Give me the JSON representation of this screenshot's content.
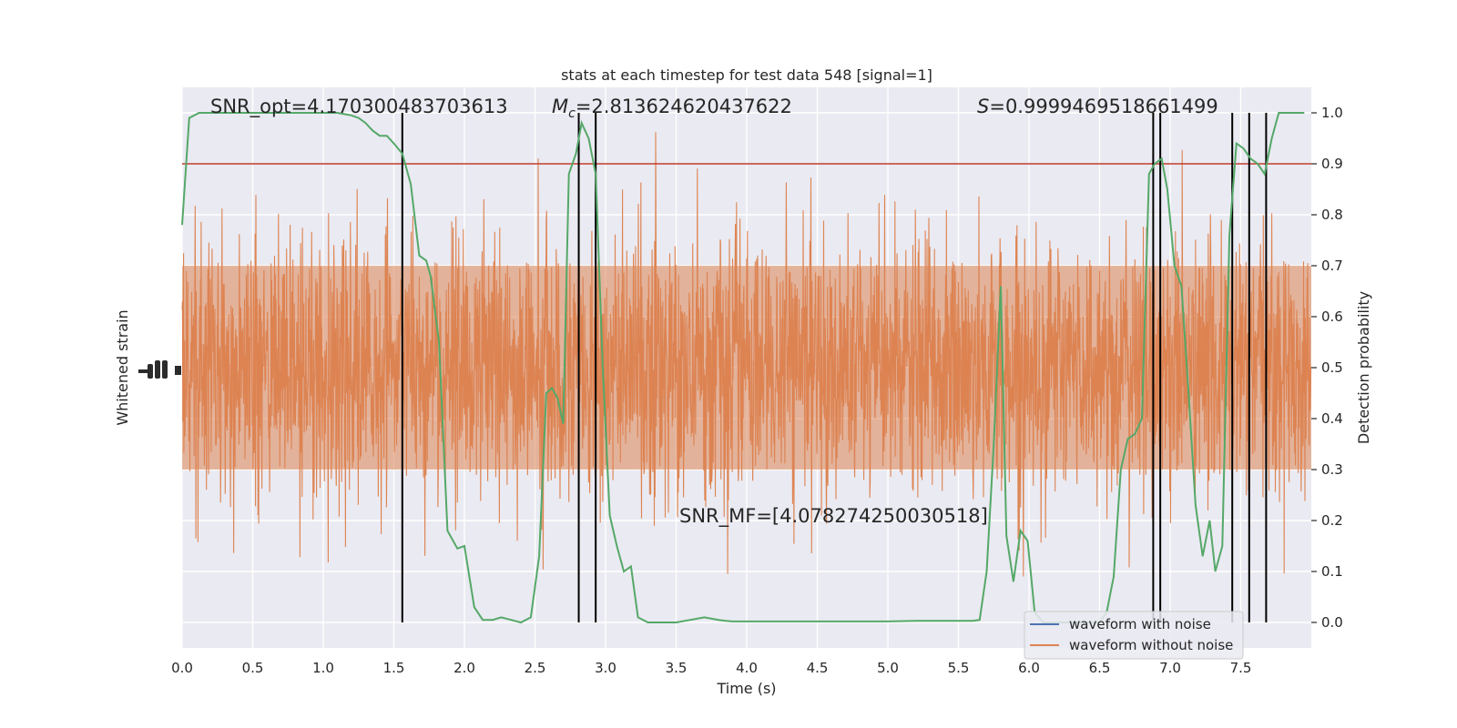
{
  "chart_data": {
    "type": "line",
    "title": "stats at each timestep for test data 548 [signal=1]",
    "xlabel": "Time (s)",
    "ylabel_left": "Whitened strain",
    "ylabel_right": "Detection probability",
    "xlim": [
      0,
      8
    ],
    "ylim_right": [
      -0.05,
      1.05
    ],
    "x_ticks": [
      0.0,
      0.5,
      1.0,
      1.5,
      2.0,
      2.5,
      3.0,
      3.5,
      4.0,
      4.5,
      5.0,
      5.5,
      6.0,
      6.5,
      7.0,
      7.5
    ],
    "x_tick_labels": [
      "0.0",
      "0.5",
      "1.0",
      "1.5",
      "2.0",
      "2.5",
      "3.0",
      "3.5",
      "4.0",
      "4.5",
      "5.0",
      "5.5",
      "6.0",
      "6.5",
      "7.0",
      "7.5"
    ],
    "y_ticks_right": [
      0.0,
      0.1,
      0.2,
      0.3,
      0.4,
      0.5,
      0.6,
      0.7,
      0.8,
      0.9,
      1.0
    ],
    "y_tick_labels_right": [
      "0.0",
      "0.1",
      "0.2",
      "0.3",
      "0.4",
      "0.5",
      "0.6",
      "0.7",
      "0.8",
      "0.9",
      "1.0"
    ],
    "grid": true,
    "legend_position": "lower-right",
    "threshold": {
      "value": 0.9,
      "color": "#c0392b"
    },
    "vertical_lines_x": [
      1.56,
      2.81,
      2.93,
      6.88,
      6.93,
      7.44,
      7.56,
      7.68
    ],
    "annotations": {
      "snr_opt": "SNR_opt=4.170300483703613",
      "mc_symbol": "M",
      "mc_sub": "c",
      "mc_value": "=2.813624620437622",
      "s_symbol": "S",
      "s_value": "=0.9999469518661499",
      "snr_mf": "SNR_MF=[4.078274250030518]"
    },
    "series": [
      {
        "name": "waveform with noise",
        "color": "#4c72b0"
      },
      {
        "name": "waveform without noise",
        "color": "#dd8452"
      },
      {
        "name": "",
        "color": "#55a868",
        "x": [
          0.0,
          0.05,
          0.12,
          0.2,
          0.4,
          0.6,
          0.8,
          1.0,
          1.1,
          1.2,
          1.25,
          1.3,
          1.35,
          1.4,
          1.45,
          1.5,
          1.56,
          1.62,
          1.68,
          1.73,
          1.76,
          1.82,
          1.88,
          1.95,
          2.0,
          2.07,
          2.13,
          2.2,
          2.26,
          2.33,
          2.4,
          2.47,
          2.53,
          2.58,
          2.62,
          2.66,
          2.7,
          2.74,
          2.79,
          2.83,
          2.88,
          2.93,
          2.98,
          3.03,
          3.08,
          3.13,
          3.18,
          3.23,
          3.3,
          3.4,
          3.5,
          3.6,
          3.7,
          3.8,
          3.85,
          3.9,
          4.0,
          4.2,
          4.5,
          5.0,
          5.2,
          5.5,
          5.6,
          5.65,
          5.7,
          5.75,
          5.8,
          5.84,
          5.89,
          5.94,
          5.99,
          6.04,
          6.1,
          6.2,
          6.3,
          6.4,
          6.5,
          6.55,
          6.6,
          6.65,
          6.7,
          6.75,
          6.8,
          6.85,
          6.89,
          6.94,
          6.98,
          7.03,
          7.08,
          7.13,
          7.18,
          7.23,
          7.28,
          7.32,
          7.37,
          7.42,
          7.47,
          7.52,
          7.57,
          7.62,
          7.67,
          7.72,
          7.77,
          7.8,
          7.87,
          7.95
        ],
        "y": [
          0.78,
          0.99,
          1.0,
          1.0,
          1.0,
          1.0,
          1.0,
          1.0,
          1.0,
          0.995,
          0.99,
          0.98,
          0.965,
          0.955,
          0.955,
          0.94,
          0.92,
          0.86,
          0.72,
          0.71,
          0.68,
          0.55,
          0.18,
          0.145,
          0.15,
          0.03,
          0.005,
          0.005,
          0.01,
          0.005,
          0.0,
          0.01,
          0.13,
          0.45,
          0.46,
          0.44,
          0.39,
          0.88,
          0.92,
          0.98,
          0.95,
          0.88,
          0.5,
          0.21,
          0.15,
          0.1,
          0.11,
          0.01,
          0.0,
          0.0,
          0.0,
          0.005,
          0.01,
          0.005,
          0.003,
          0.002,
          0.002,
          0.002,
          0.002,
          0.002,
          0.003,
          0.003,
          0.003,
          0.005,
          0.1,
          0.35,
          0.66,
          0.17,
          0.08,
          0.18,
          0.16,
          0.02,
          0.0,
          0.0,
          0.0,
          0.0,
          0.0,
          0.02,
          0.09,
          0.3,
          0.36,
          0.37,
          0.4,
          0.88,
          0.9,
          0.91,
          0.85,
          0.7,
          0.66,
          0.45,
          0.23,
          0.13,
          0.2,
          0.1,
          0.15,
          0.76,
          0.94,
          0.93,
          0.91,
          0.9,
          0.88,
          0.95,
          1.0,
          1.0,
          1.0,
          1.0
        ]
      }
    ]
  }
}
